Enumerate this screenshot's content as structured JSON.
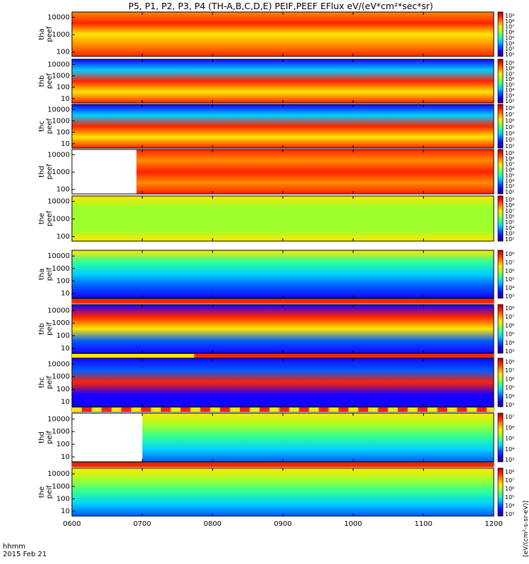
{
  "chart_data": {
    "type": "heatmap",
    "title": "P5, P1, P2, P3, P4 (TH-A,B,C,D,E) PEIF,PEEF EFlux eV/(eV*cm²*sec*sr)",
    "colorbar_label": "[eV/(cm²-s-sr-eV)]",
    "x_axis": {
      "label_top": "hhmm",
      "label_bottom": "2015 Feb 21",
      "range": [
        "0600",
        "1200"
      ],
      "ticks": [
        "0600",
        "0700",
        "0800",
        "0900",
        "1000",
        "1100",
        "1200"
      ]
    },
    "y_axis_scale": "log",
    "colormap": [
      "#26007f",
      "#1400ff",
      "#005bff",
      "#00cfff",
      "#2dff9a",
      "#9fff2d",
      "#ffe600",
      "#ff8a00",
      "#ff2200",
      "#b00000"
    ],
    "panels": [
      {
        "label1": "tha",
        "label2": "peef",
        "y_ticks": [
          "10000",
          "1000",
          "100"
        ],
        "cbar_ticks": [
          "10⁹",
          "10⁸",
          "10⁷",
          "10⁶",
          "10⁵",
          "10⁴",
          "10³",
          "10²"
        ],
        "colors": [
          "#ff8a00",
          "#ff2200",
          "#ffe600",
          "#ff8a00",
          "#ff2200"
        ],
        "data_start": "0600",
        "bottom_flag": "none"
      },
      {
        "label1": "thb",
        "label2": "peef",
        "y_ticks": [
          "10000",
          "1000",
          "100",
          "10"
        ],
        "cbar_ticks": [
          "10⁹",
          "10⁸",
          "10⁷",
          "10⁶",
          "10⁵",
          "10⁴",
          "10³",
          "10²"
        ],
        "colors": [
          "#1400ff",
          "#00cfff",
          "#ff2200",
          "#ffe600",
          "#ff2200"
        ],
        "data_start": "0600",
        "bottom_flag": "none"
      },
      {
        "label1": "thc",
        "label2": "peef",
        "y_ticks": [
          "10000",
          "1000",
          "100",
          "10"
        ],
        "cbar_ticks": [
          "10⁸",
          "10⁷",
          "10⁶",
          "10⁵",
          "10⁴",
          "10³",
          "10²"
        ],
        "colors": [
          "#1400ff",
          "#00cfff",
          "#ff2200",
          "#ffe600",
          "#ff2200"
        ],
        "data_start": "0600",
        "bottom_flag": "none"
      },
      {
        "label1": "thd",
        "label2": "peef",
        "y_ticks": [
          "10000",
          "1000",
          "100"
        ],
        "cbar_ticks": [
          "10⁹",
          "10⁸",
          "10⁷",
          "10⁶",
          "10⁵",
          "10⁴",
          "10³",
          "10²"
        ],
        "colors": [
          "#ff2200",
          "#ff8a00",
          "#ff2200",
          "#ff8a00",
          "#ff2200"
        ],
        "data_start": "0655",
        "bottom_flag": "none"
      },
      {
        "label1": "the",
        "label2": "peef",
        "y_ticks": [
          "10000",
          "1000",
          "100"
        ],
        "cbar_ticks": [
          "10⁹",
          "10⁸",
          "10⁷",
          "10⁶",
          "10⁵",
          "10⁴",
          "10³",
          "10²"
        ],
        "colors": [
          "#ffe600",
          "#9fff2d",
          "#9fff2d",
          "#9fff2d",
          "#ffe600"
        ],
        "data_start": "0600",
        "bottom_flag": "none"
      },
      {
        "label1": "tha",
        "label2": "peif",
        "y_ticks": [
          "10000",
          "1000",
          "100",
          "10"
        ],
        "cbar_ticks": [
          "10⁸",
          "10⁷",
          "10⁶",
          "10⁵",
          "10⁴",
          "10³"
        ],
        "colors": [
          "#ffe600",
          "#2dff9a",
          "#00cfff",
          "#005bff",
          "#1400ff"
        ],
        "data_start": "0600",
        "bottom_flag": "red"
      },
      {
        "label1": "thb",
        "label2": "peif",
        "y_ticks": [
          "10000",
          "1000",
          "100",
          "10"
        ],
        "cbar_ticks": [
          "10⁸",
          "10⁷",
          "10⁶",
          "10⁵",
          "10⁴",
          "10³"
        ],
        "colors": [
          "#1400ff",
          "#ff2200",
          "#ffe600",
          "#005bff",
          "#1400ff"
        ],
        "data_start": "0600",
        "bottom_flag": "yellow-red"
      },
      {
        "label1": "thc",
        "label2": "peif",
        "y_ticks": [
          "10000",
          "1000",
          "100",
          "10"
        ],
        "cbar_ticks": [
          "10⁸",
          "10⁷",
          "10⁶",
          "10⁵",
          "10⁴",
          "10³"
        ],
        "colors": [
          "#1400ff",
          "#005bff",
          "#ff2200",
          "#1400ff",
          "#1400ff"
        ],
        "data_start": "0600",
        "bottom_flag": "mixed"
      },
      {
        "label1": "thd",
        "label2": "peif",
        "y_ticks": [
          "10000",
          "1000",
          "100",
          "10"
        ],
        "cbar_ticks": [
          "10⁷",
          "10⁶",
          "10⁵",
          "10⁴",
          "10³"
        ],
        "colors": [
          "#ffe600",
          "#9fff2d",
          "#2dff9a",
          "#00cfff",
          "#005bff"
        ],
        "data_start": "0700",
        "bottom_flag": "red"
      },
      {
        "label1": "the",
        "label2": "peif",
        "y_ticks": [
          "10000",
          "1000",
          "100",
          "10"
        ],
        "cbar_ticks": [
          "10⁸",
          "10⁷",
          "10⁶",
          "10⁵",
          "10⁴",
          "10³"
        ],
        "colors": [
          "#ffe600",
          "#9fff2d",
          "#2dff9a",
          "#00cfff",
          "#005bff"
        ],
        "data_start": "0600",
        "bottom_flag": "none"
      }
    ]
  }
}
